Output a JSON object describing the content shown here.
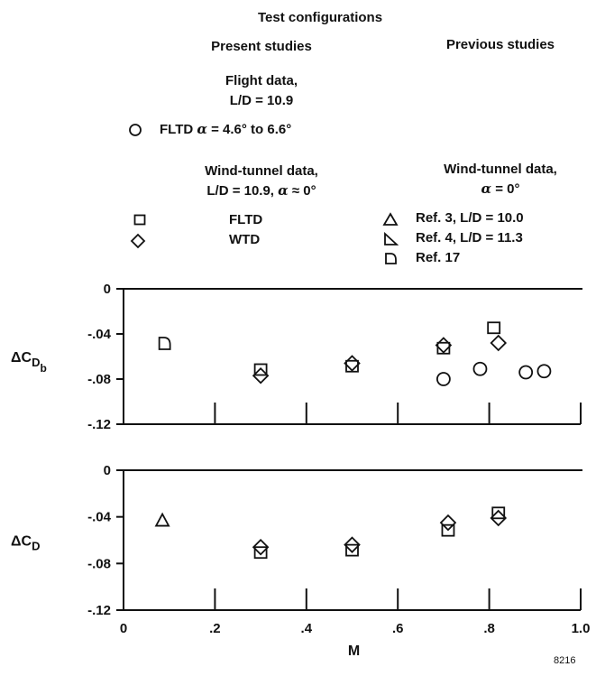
{
  "legend": {
    "title": "Test configurations",
    "present_heading": "Present studies",
    "previous_heading": "Previous studies",
    "flight_heading_1": "Flight data,",
    "flight_heading_2": "L/D = 10.9",
    "flight_entry_prefix": "FLTD ",
    "flight_entry_alpha": "α",
    "flight_entry_suffix": " = 4.6° to 6.6°",
    "wt_present_heading_1": "Wind-tunnel data,",
    "wt_present_heading_2_prefix": "L/D = 10.9, ",
    "wt_present_heading_2_alpha": "α",
    "wt_present_heading_2_suffix": " ≈ 0°",
    "wt_present_entries": [
      "FLTD",
      "WTD"
    ],
    "wt_previous_heading_1": "Wind-tunnel data,",
    "wt_previous_heading_2_alpha": "α",
    "wt_previous_heading_2_suffix": " = 0°",
    "wt_previous_entries": [
      "Ref. 3, L/D = 10.0",
      "Ref. 4, L/D = 11.3",
      "Ref. 17"
    ]
  },
  "figure_number": "8216",
  "chart_data": [
    {
      "type": "scatter",
      "ylabel_main": "ΔC",
      "ylabel_sub": "D",
      "ylabel_subsub": "b",
      "xlim": [
        0,
        1.0
      ],
      "ylim": [
        -0.12,
        0
      ],
      "yticks": [
        "0",
        "-.04",
        "-.08",
        "-.12"
      ],
      "ytick_values": [
        0,
        -0.04,
        -0.08,
        -0.12
      ],
      "xtick_values": [
        0.2,
        0.4,
        0.6,
        0.8,
        1.0
      ],
      "series": [
        {
          "name": "FLTD α = 4.6° to 6.6°",
          "symbol": "circle",
          "points": [
            [
              0.7,
              -0.08
            ],
            [
              0.78,
              -0.071
            ],
            [
              0.88,
              -0.074
            ],
            [
              0.92,
              -0.073
            ]
          ]
        },
        {
          "name": "FLTD",
          "symbol": "square",
          "points": [
            [
              0.3,
              -0.072
            ],
            [
              0.5,
              -0.069
            ],
            [
              0.7,
              -0.053
            ],
            [
              0.81,
              -0.035
            ]
          ]
        },
        {
          "name": "WTD",
          "symbol": "diamond",
          "points": [
            [
              0.3,
              -0.077
            ],
            [
              0.5,
              -0.066
            ],
            [
              0.7,
              -0.05
            ],
            [
              0.82,
              -0.048
            ]
          ]
        },
        {
          "name": "Ref. 17",
          "symbol": "d-shape",
          "points": [
            [
              0.09,
              -0.048
            ]
          ]
        }
      ]
    },
    {
      "type": "scatter",
      "ylabel_main": "ΔC",
      "ylabel_sub": "D",
      "xlabel": "M",
      "xlim": [
        0,
        1.0
      ],
      "ylim": [
        -0.12,
        0
      ],
      "yticks": [
        "0",
        "-.04",
        "-.08",
        "-.12"
      ],
      "ytick_values": [
        0,
        -0.04,
        -0.08,
        -0.12
      ],
      "xticks": [
        "0",
        ".2",
        ".4",
        ".6",
        ".8",
        "1.0"
      ],
      "xtick_values": [
        0,
        0.2,
        0.4,
        0.6,
        0.8,
        1.0
      ],
      "series": [
        {
          "name": "FLTD",
          "symbol": "square",
          "points": [
            [
              0.3,
              -0.071
            ],
            [
              0.5,
              -0.069
            ],
            [
              0.71,
              -0.052
            ],
            [
              0.82,
              -0.037
            ]
          ]
        },
        {
          "name": "WTD",
          "symbol": "diamond",
          "points": [
            [
              0.3,
              -0.066
            ],
            [
              0.5,
              -0.064
            ],
            [
              0.71,
              -0.045
            ],
            [
              0.82,
              -0.041
            ]
          ]
        },
        {
          "name": "Ref. 3, L/D = 10.0",
          "symbol": "triangle",
          "points": [
            [
              0.085,
              -0.043
            ]
          ]
        }
      ]
    }
  ]
}
